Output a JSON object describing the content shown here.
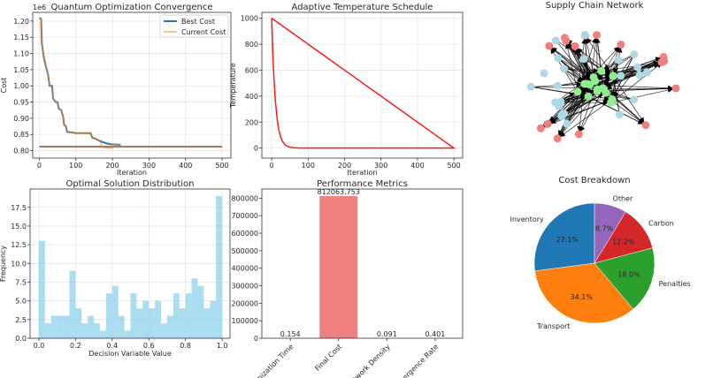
{
  "chart_data": [
    {
      "type": "line",
      "title": "Quantum Optimization Convergence",
      "xlabel": "Iteration",
      "ylabel": "Cost",
      "y_offset_label": "1e6",
      "xlim": [
        -18,
        524
      ],
      "ylim": [
        0.777,
        1.227
      ],
      "grid": true,
      "legend": "top-right",
      "xticks": [
        0,
        100,
        200,
        300,
        400,
        500
      ],
      "xtick_labels": [
        "0",
        "100",
        "200",
        "300",
        "400",
        "500"
      ],
      "yticks": [
        0.8,
        0.85,
        0.9,
        0.95,
        1.0,
        1.05,
        1.1,
        1.15,
        1.2
      ],
      "ytick_labels": [
        "0.80",
        "0.85",
        "0.90",
        "0.95",
        "1.00",
        "1.05",
        "1.10",
        "1.15",
        "1.20"
      ],
      "series": [
        {
          "name": "Best Cost",
          "color": "#1f77b4",
          "x": [
            0,
            5,
            7,
            12,
            18,
            24,
            28,
            35,
            38,
            45,
            50,
            53,
            60,
            65,
            68,
            73,
            76,
            90,
            100,
            140,
            145,
            155,
            165,
            175,
            185,
            195,
            220,
            222,
            500,
            0
          ],
          "y": [
            1.21,
            1.207,
            1.13,
            1.09,
            1.06,
            1.035,
            1.0,
            1.0,
            0.96,
            0.95,
            0.95,
            0.93,
            0.925,
            0.905,
            0.88,
            0.875,
            0.858,
            0.856,
            0.854,
            0.854,
            0.84,
            0.836,
            0.83,
            0.826,
            0.822,
            0.82,
            0.818,
            0.812,
            0.812,
            0.812
          ]
        },
        {
          "name": "Current Cost",
          "color": "#ff7f0e",
          "x": [
            0,
            5,
            7,
            12,
            18,
            24,
            28,
            35,
            38,
            45,
            50,
            53,
            60,
            65,
            68,
            73,
            76,
            90,
            100,
            140,
            145,
            155,
            165,
            175,
            185,
            195,
            200,
            200,
            220,
            222,
            500,
            0
          ],
          "y": [
            1.21,
            1.207,
            1.13,
            1.09,
            1.06,
            1.035,
            1.0,
            1.0,
            0.96,
            0.95,
            0.95,
            0.93,
            0.925,
            0.905,
            0.88,
            0.875,
            0.858,
            0.856,
            0.854,
            0.854,
            0.84,
            0.836,
            0.83,
            0.81,
            0.808,
            0.808,
            0.808,
            0.82,
            0.818,
            0.812,
            0.812,
            0.812
          ]
        }
      ]
    },
    {
      "type": "line",
      "title": "Adaptive Temperature Schedule",
      "xlabel": "Iteration",
      "ylabel": "Temperature",
      "xlim": [
        -27,
        524
      ],
      "ylim": [
        -77,
        1045
      ],
      "grid": true,
      "xticks": [
        0,
        100,
        200,
        300,
        400,
        500
      ],
      "xtick_labels": [
        "0",
        "100",
        "200",
        "300",
        "400",
        "500"
      ],
      "yticks": [
        0,
        200,
        400,
        600,
        800,
        1000
      ],
      "ytick_labels": [
        "0",
        "200",
        "400",
        "600",
        "800",
        "1000"
      ],
      "series": [
        {
          "color": "#ff0000",
          "x": [
            0,
            3,
            6,
            10,
            15,
            20,
            25,
            30,
            35,
            40,
            50,
            60,
            80,
            100,
            500,
            0
          ],
          "y": [
            1000,
            741,
            549,
            368,
            223,
            135,
            82,
            50,
            30,
            18,
            7,
            2.5,
            0.3,
            0,
            0,
            1000
          ]
        }
      ]
    },
    {
      "type": "network",
      "title": "Supply Chain Network",
      "node_groups": [
        {
          "color": "#f08080",
          "count": 16
        },
        {
          "color": "#add8e6",
          "count": 22
        },
        {
          "color": "#90ee90",
          "count": 17
        }
      ],
      "edge_color": "#000000",
      "directed": true
    },
    {
      "type": "bar",
      "title": "Optimal Solution Distribution",
      "xlabel": "Decision Variable Value",
      "ylabel": "Frequency",
      "color": "#87ceeb",
      "bin_range": [
        0,
        1
      ],
      "values": [
        13,
        2,
        3,
        3,
        3,
        9,
        4,
        2,
        3,
        2,
        1,
        6,
        7,
        3,
        1,
        6,
        4,
        5,
        4,
        5,
        2,
        3,
        6,
        4,
        6,
        8,
        7,
        4,
        5,
        19
      ],
      "xlim": [
        -0.048,
        1.043
      ],
      "ylim": [
        0,
        19.95
      ],
      "grid": true,
      "xticks": [
        0,
        0.2,
        0.4,
        0.6,
        0.8,
        1.0
      ],
      "xtick_labels": [
        "0.0",
        "0.2",
        "0.4",
        "0.6",
        "0.8",
        "1.0"
      ],
      "yticks": [
        0,
        2.5,
        5,
        7.5,
        10,
        12.5,
        15,
        17.5
      ],
      "ytick_labels": [
        "0.0",
        "2.5",
        "5.0",
        "7.5",
        "10.0",
        "12.5",
        "15.0",
        "17.5"
      ]
    },
    {
      "type": "bar",
      "title": "Performance Metrics",
      "categories": [
        "Optimization Time",
        "Final Cost",
        "Network Density",
        "Convergence Rate"
      ],
      "values": [
        0.154,
        812063.753,
        0.091,
        0.401
      ],
      "data_labels": [
        "0.154",
        "812063.753",
        "0.091",
        "0.401"
      ],
      "color": "#f08080",
      "ylim": [
        0,
        852600
      ],
      "grid": false,
      "yticks": [
        0,
        100000,
        200000,
        300000,
        400000,
        500000,
        600000,
        700000,
        800000
      ],
      "ytick_labels": [
        "0",
        "100000",
        "200000",
        "300000",
        "400000",
        "500000",
        "600000",
        "700000",
        "800000"
      ]
    },
    {
      "type": "pie",
      "title": "Cost Breakdown",
      "categories": [
        "Inventory",
        "Transport",
        "Penalties",
        "Carbon",
        "Other"
      ],
      "values": [
        27.1,
        34.1,
        18.0,
        12.2,
        8.7
      ],
      "labels": [
        "27.1%",
        "34.1%",
        "18.0%",
        "12.2%",
        "8.7%"
      ],
      "colors": [
        "#1f77b4",
        "#ff7f0e",
        "#2ca02c",
        "#d62728",
        "#9467bd"
      ],
      "start_angle": 90,
      "direction": "counterclockwise"
    }
  ]
}
